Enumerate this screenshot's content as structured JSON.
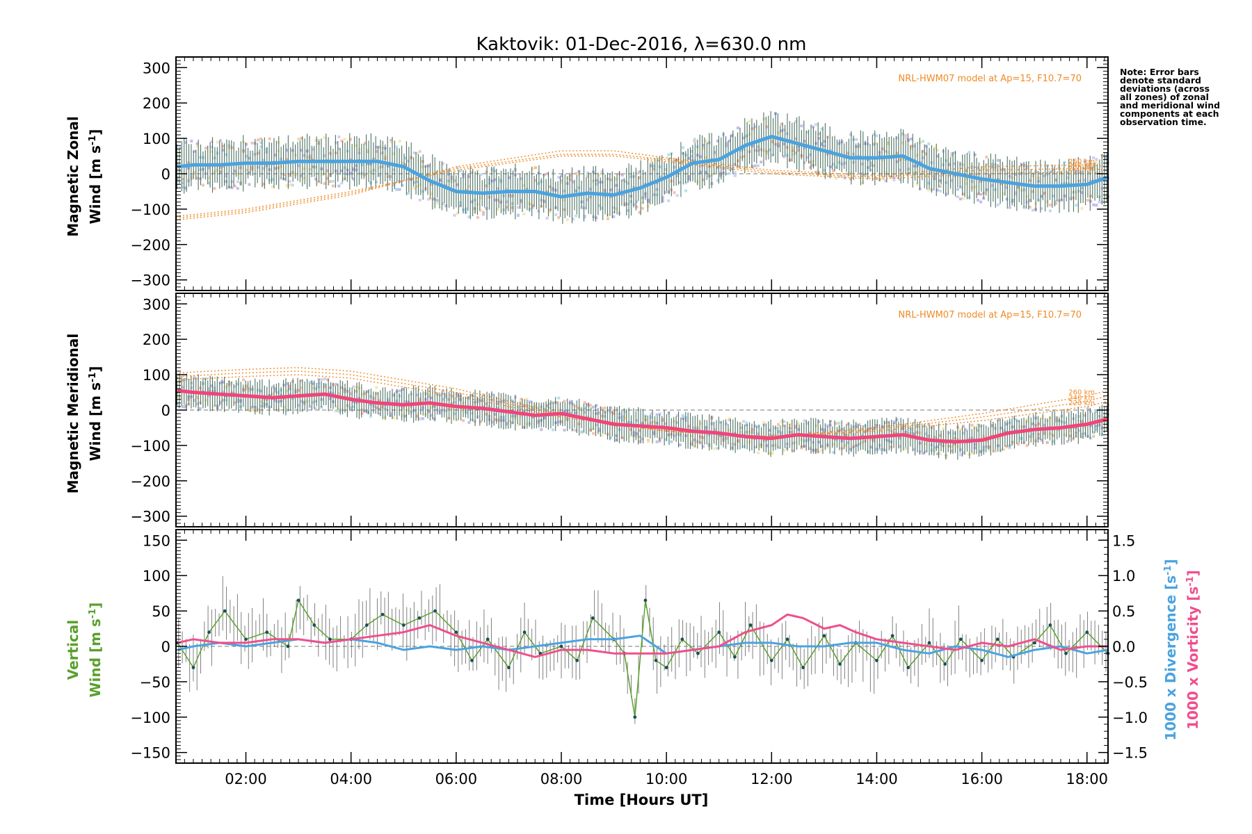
{
  "figure": {
    "title": "Kaktovik: 01-Dec-2016, λ=630.0 nm",
    "xlabel": "Time [Hours UT]",
    "note": "Note: Error bars denote standard deviations (across all zones) of zonal and meridional wind components at each observation time.",
    "model_label": "NRL-HWM07 model at Ap=15, F10.7=70",
    "colors": {
      "zonal_mean": "#4aa3df",
      "zonal_mean_dark": "#1a3fe6",
      "meridional_mean": "#f0457a",
      "model": "#f08a24",
      "vertical": "#5aa02c",
      "divergence": "#4aa3df",
      "vorticity": "#ef4f8c",
      "errorbar": "#2e5a48",
      "zones": [
        "#b3aee0",
        "#f6e49a",
        "#f3b19c",
        "#a8d8ea",
        "#c8c4ee"
      ]
    }
  },
  "chart_data": [
    {
      "type": "line",
      "panel": "zonal",
      "ylabel_line1": "Magnetic Zonal",
      "ylabel_line2": "Wind [m s",
      "ylabel_sup": "-1",
      "ylabel_close": "]",
      "xlim": [
        0.67,
        18.4
      ],
      "ylim": [
        -330,
        330
      ],
      "yticks": [
        -300,
        -200,
        -100,
        0,
        100,
        200,
        300
      ],
      "xticks": [
        2,
        4,
        6,
        8,
        10,
        12,
        14,
        16,
        18
      ],
      "xtick_labels": [
        "02:00",
        "04:00",
        "06:00",
        "08:00",
        "10:00",
        "12:00",
        "14:00",
        "16:00",
        "18:00"
      ],
      "model_altitude_labels": [
        "260 km",
        "240 km",
        "220 km"
      ],
      "mean_profile": {
        "t": [
          0.7,
          1.0,
          1.5,
          2.0,
          2.5,
          3.0,
          3.5,
          4.0,
          4.5,
          5.0,
          5.5,
          6.0,
          6.5,
          7.0,
          7.5,
          8.0,
          8.5,
          9.0,
          9.5,
          10.0,
          10.5,
          11.0,
          11.5,
          12.0,
          12.5,
          13.0,
          13.5,
          14.0,
          14.5,
          15.0,
          15.5,
          16.0,
          16.5,
          17.0,
          17.5,
          18.0,
          18.4
        ],
        "v": [
          20,
          25,
          25,
          30,
          30,
          35,
          35,
          35,
          35,
          20,
          -20,
          -50,
          -55,
          -50,
          -50,
          -65,
          -55,
          -60,
          -40,
          -10,
          30,
          40,
          80,
          105,
          85,
          65,
          45,
          45,
          50,
          15,
          0,
          -15,
          -25,
          -35,
          -35,
          -30,
          -10
        ]
      },
      "model_curves": [
        {
          "name": "260 km",
          "t": [
            0.7,
            2,
            4,
            6,
            8,
            9,
            10,
            12,
            14,
            16,
            18,
            18.4
          ],
          "v": [
            -130,
            -110,
            -60,
            20,
            65,
            65,
            45,
            10,
            -5,
            20,
            25,
            20
          ]
        },
        {
          "name": "240 km",
          "t": [
            0.7,
            2,
            4,
            6,
            8,
            9,
            10,
            12,
            14,
            16,
            18,
            18.4
          ],
          "v": [
            -125,
            -105,
            -55,
            15,
            55,
            55,
            40,
            5,
            -10,
            10,
            15,
            10
          ]
        },
        {
          "name": "220 km",
          "t": [
            0.7,
            2,
            4,
            6,
            8,
            9,
            10,
            12,
            14,
            16,
            18,
            18.4
          ],
          "v": [
            -120,
            -100,
            -50,
            10,
            50,
            50,
            35,
            0,
            -15,
            0,
            5,
            0
          ]
        }
      ]
    },
    {
      "type": "line",
      "panel": "meridional",
      "ylabel_line1": "Magnetic Meridional",
      "ylabel_line2": "Wind [m s",
      "ylabel_sup": "-1",
      "ylabel_close": "]",
      "xlim": [
        0.67,
        18.4
      ],
      "ylim": [
        -330,
        330
      ],
      "yticks": [
        -300,
        -200,
        -100,
        0,
        100,
        200,
        300
      ],
      "xticks": [
        2,
        4,
        6,
        8,
        10,
        12,
        14,
        16,
        18
      ],
      "model_altitude_labels": [
        "260 km",
        "240 km",
        "220 km"
      ],
      "mean_profile": {
        "t": [
          0.7,
          1.0,
          1.5,
          2.0,
          2.5,
          3.0,
          3.5,
          4.0,
          4.5,
          5.0,
          5.5,
          6.0,
          6.5,
          7.0,
          7.5,
          8.0,
          8.5,
          9.0,
          9.5,
          10.0,
          10.5,
          11.0,
          11.5,
          12.0,
          12.5,
          13.0,
          13.5,
          14.0,
          14.5,
          15.0,
          15.5,
          16.0,
          16.5,
          17.0,
          17.5,
          18.0,
          18.4
        ],
        "v": [
          55,
          50,
          45,
          40,
          35,
          40,
          45,
          30,
          20,
          15,
          20,
          10,
          5,
          -5,
          -15,
          -10,
          -25,
          -40,
          -45,
          -50,
          -60,
          -65,
          -75,
          -80,
          -70,
          -75,
          -80,
          -75,
          -70,
          -85,
          -90,
          -85,
          -65,
          -55,
          -50,
          -40,
          -25
        ]
      },
      "model_curves": [
        {
          "name": "260 km",
          "t": [
            0.7,
            2,
            3,
            4,
            6,
            8,
            10,
            12,
            14,
            16,
            18,
            18.4
          ],
          "v": [
            105,
            115,
            120,
            110,
            60,
            -10,
            -60,
            -75,
            -50,
            -10,
            40,
            55
          ]
        },
        {
          "name": "240 km",
          "t": [
            0.7,
            2,
            3,
            4,
            6,
            8,
            10,
            12,
            14,
            16,
            18,
            18.4
          ],
          "v": [
            95,
            105,
            110,
            100,
            50,
            -15,
            -60,
            -75,
            -55,
            -20,
            25,
            40
          ]
        },
        {
          "name": "220 km",
          "t": [
            0.7,
            2,
            3,
            4,
            6,
            8,
            10,
            12,
            14,
            16,
            18,
            18.4
          ],
          "v": [
            85,
            95,
            100,
            90,
            40,
            -20,
            -60,
            -75,
            -60,
            -30,
            10,
            25
          ]
        }
      ]
    },
    {
      "type": "line",
      "panel": "vertical",
      "ylabel_line1": "Vertical",
      "ylabel_line2": "Wind [m s",
      "ylabel_sup": "-1",
      "ylabel_close": "]",
      "right_label_div": "1000 x Divergence [s",
      "right_label_vort": "1000 x Vorticity [s",
      "right_sup": "-1",
      "right_close": "]",
      "xlim": [
        0.67,
        18.4
      ],
      "ylim": [
        -165,
        165
      ],
      "yticks": [
        -150,
        -100,
        -50,
        0,
        50,
        100,
        150
      ],
      "y2lim": [
        -1.65,
        1.65
      ],
      "y2ticks": [
        -1.5,
        -1.0,
        -0.5,
        0.0,
        0.5,
        1.0,
        1.5
      ],
      "y2tick_labels": [
        "−1.5",
        "−1.0",
        "−0.5",
        "0.0",
        "0.5",
        "1.0",
        "1.5"
      ],
      "xticks": [
        2,
        4,
        6,
        8,
        10,
        12,
        14,
        16,
        18
      ],
      "xtick_labels": [
        "02:00",
        "04:00",
        "06:00",
        "08:00",
        "10:00",
        "12:00",
        "14:00",
        "16:00",
        "18:00"
      ],
      "vertical_wind": {
        "t": [
          0.7,
          1.0,
          1.3,
          1.6,
          2.0,
          2.4,
          2.8,
          3.0,
          3.3,
          3.6,
          4.0,
          4.3,
          4.6,
          5.0,
          5.3,
          5.6,
          6.0,
          6.3,
          6.6,
          7.0,
          7.3,
          7.6,
          8.0,
          8.3,
          8.6,
          9.0,
          9.2,
          9.4,
          9.6,
          9.8,
          10.0,
          10.3,
          10.6,
          11.0,
          11.3,
          11.6,
          12.0,
          12.3,
          12.6,
          13.0,
          13.3,
          13.6,
          14.0,
          14.3,
          14.6,
          15.0,
          15.3,
          15.6,
          16.0,
          16.3,
          16.6,
          17.0,
          17.3,
          17.6,
          18.0,
          18.4
        ],
        "v": [
          5,
          -30,
          20,
          50,
          10,
          20,
          0,
          65,
          30,
          10,
          10,
          30,
          45,
          30,
          40,
          50,
          20,
          -20,
          10,
          -30,
          20,
          -10,
          0,
          -20,
          40,
          10,
          -10,
          -100,
          65,
          -20,
          -30,
          10,
          -10,
          20,
          -15,
          30,
          -20,
          10,
          -30,
          15,
          -25,
          5,
          -20,
          15,
          -30,
          5,
          -25,
          10,
          -20,
          10,
          -15,
          5,
          30,
          -10,
          20,
          -10
        ]
      },
      "divergence": {
        "t": [
          0.7,
          1.0,
          1.5,
          2.0,
          2.5,
          3.0,
          3.5,
          4.0,
          4.5,
          5.0,
          5.5,
          6.0,
          6.5,
          7.0,
          7.5,
          8.0,
          8.5,
          9.0,
          9.5,
          10.0,
          10.5,
          11.0,
          11.5,
          12.0,
          12.5,
          13.0,
          13.5,
          14.0,
          14.5,
          15.0,
          15.5,
          16.0,
          16.5,
          17.0,
          17.5,
          18.0,
          18.4
        ],
        "v": [
          -0.05,
          0.0,
          0.05,
          0.0,
          0.05,
          0.1,
          0.05,
          0.1,
          0.05,
          -0.05,
          0.0,
          -0.05,
          0.0,
          -0.05,
          0.0,
          0.05,
          0.1,
          0.1,
          0.15,
          -0.1,
          -0.05,
          0.0,
          0.05,
          0.05,
          0.0,
          0.0,
          0.05,
          0.05,
          -0.05,
          -0.1,
          0.0,
          -0.05,
          -0.15,
          -0.05,
          0.0,
          -0.1,
          -0.05
        ]
      },
      "vorticity": {
        "t": [
          0.7,
          1.0,
          1.5,
          2.0,
          2.5,
          3.0,
          3.5,
          4.0,
          4.5,
          5.0,
          5.5,
          6.0,
          6.5,
          7.0,
          7.5,
          8.0,
          8.5,
          9.0,
          9.5,
          10.0,
          10.5,
          11.0,
          11.5,
          12.0,
          12.3,
          12.6,
          13.0,
          13.3,
          13.6,
          14.0,
          14.5,
          15.0,
          15.5,
          16.0,
          16.5,
          17.0,
          17.5,
          18.0,
          18.4
        ],
        "v": [
          0.05,
          0.1,
          0.05,
          0.05,
          0.1,
          0.1,
          0.05,
          0.1,
          0.15,
          0.2,
          0.3,
          0.15,
          0.05,
          -0.05,
          -0.15,
          -0.05,
          -0.05,
          -0.1,
          -0.1,
          -0.1,
          -0.05,
          0.0,
          0.2,
          0.3,
          0.45,
          0.4,
          0.25,
          0.3,
          0.2,
          0.1,
          0.05,
          0.0,
          -0.05,
          0.05,
          0.0,
          0.1,
          -0.05,
          0.0,
          0.0
        ]
      }
    }
  ]
}
